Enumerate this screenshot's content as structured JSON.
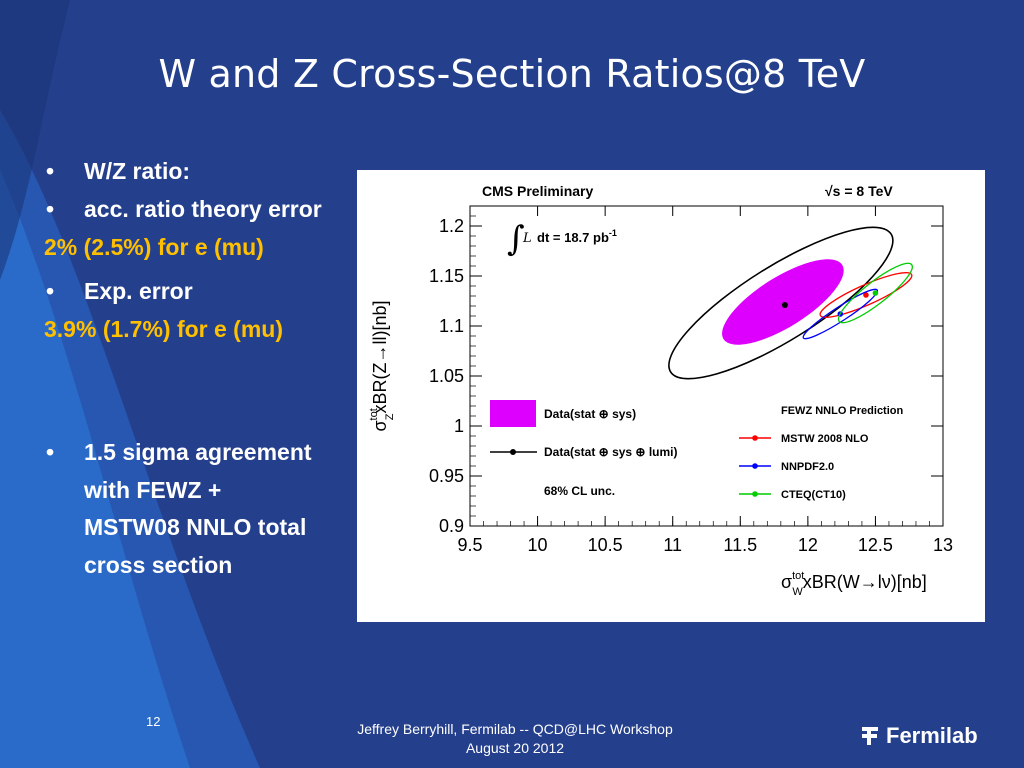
{
  "slide": {
    "title": "W and Z Cross-Section Ratios@8 TeV",
    "bullets": {
      "b1": "W/Z ratio:",
      "b2": " acc. ratio theory error",
      "o1": "2% (2.5%) for e (mu)",
      "b3": "Exp. error",
      "o2": "3.9% (1.7%) for e (mu)",
      "b4": "1.5 sigma agreement with FEWZ + MSTW08 NNLO total cross section",
      "bullet_char": "•"
    },
    "page_number": "12",
    "footer_line1": "Jeffrey Berryhill, Fermilab -- QCD@LHC Workshop",
    "footer_line2": "August 20 2012",
    "logo_text": "Fermilab",
    "logo_icon": "fermilab-logo-icon",
    "colors": {
      "background": "#243f8c",
      "highlight": "#ffc000",
      "text": "#ffffff"
    }
  },
  "chart_data": {
    "type": "scatter",
    "header_left": "CMS Preliminary",
    "header_right": "√s = 8 TeV",
    "lumi_label": "dt = 18.7 pb",
    "lumi_exp": "-1",
    "xlabel_parts": {
      "sym": "σ",
      "sup": "tot",
      "sub": "W",
      "rest": "xBR(W→lν)[nb]"
    },
    "ylabel_parts": {
      "sym": "σ",
      "sup": "tot",
      "sub": "Z",
      "rest": "xBR(Z→ll)[nb]"
    },
    "xlim": [
      9.5,
      13
    ],
    "ylim": [
      0.9,
      1.22
    ],
    "x_ticks": [
      "9.5",
      "10",
      "10.5",
      "11",
      "11.5",
      "12",
      "12.5",
      "13"
    ],
    "y_ticks": [
      "0.9",
      "0.95",
      "1",
      "1.05",
      "1.1",
      "1.15",
      "1.2"
    ],
    "data_point": {
      "x": 11.83,
      "y": 1.121
    },
    "ellipse_stat_sys": {
      "cx": 11.83,
      "cy": 1.121,
      "color": "#dd00ff"
    },
    "ellipse_lumi": {
      "cx": 11.83,
      "cy": 1.121,
      "color": "#000000"
    },
    "predictions": [
      {
        "name": "MSTW 2008 NLO",
        "x": 12.43,
        "y": 1.131,
        "color": "#ff0000"
      },
      {
        "name": "NNPDF2.0",
        "x": 12.24,
        "y": 1.112,
        "color": "#0000ff"
      },
      {
        "name": "CTEQ(CT10)",
        "x": 12.5,
        "y": 1.133,
        "color": "#00cc00"
      }
    ],
    "legend": {
      "fill_label": "Data(stat ⊕ sys)",
      "line_label": "Data(stat ⊕ sys ⊕ lumi)",
      "cl_label": "68% CL unc.",
      "pred_title": "FEWZ NNLO Prediction"
    }
  }
}
